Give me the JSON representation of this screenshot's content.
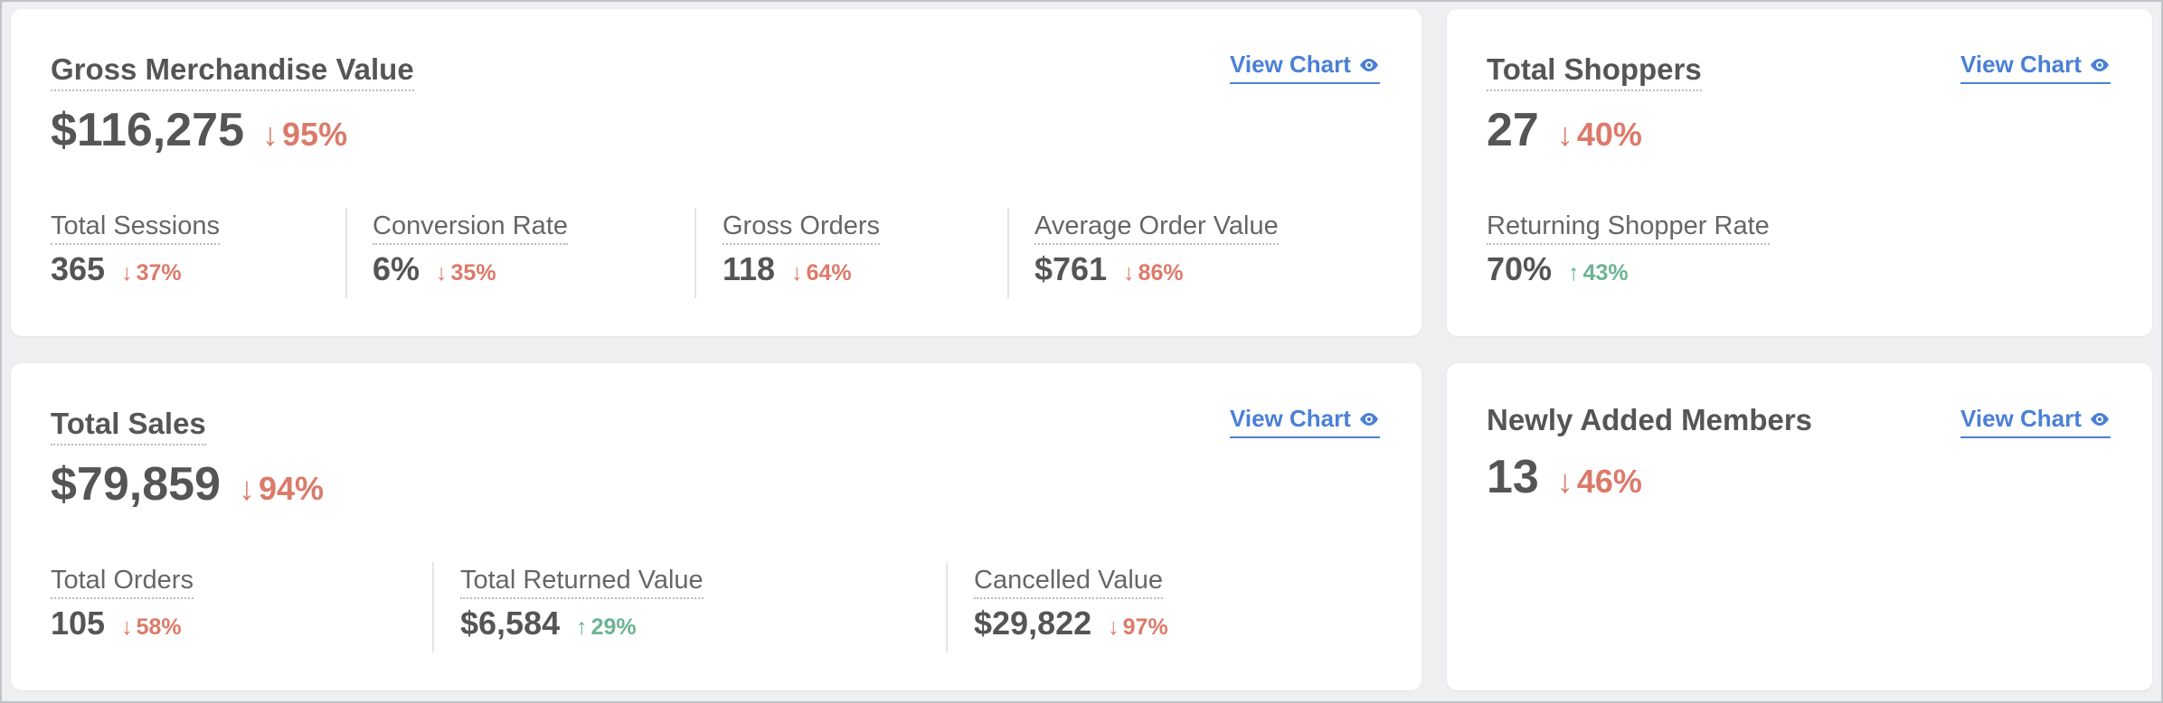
{
  "colors": {
    "down": "#dc7a6a",
    "up": "#6bb391",
    "link": "#4a80d6"
  },
  "view_chart_label": "View Chart",
  "gmv": {
    "title": "Gross Merchandise Value",
    "value": "$116,275",
    "delta": "95%",
    "delta_direction": "down",
    "metrics": [
      {
        "label": "Total Sessions",
        "value": "365",
        "delta": "37%",
        "direction": "down"
      },
      {
        "label": "Conversion Rate",
        "value": "6%",
        "delta": "35%",
        "direction": "down"
      },
      {
        "label": "Gross Orders",
        "value": "118",
        "delta": "64%",
        "direction": "down"
      },
      {
        "label": "Average Order Value",
        "value": "$761",
        "delta": "86%",
        "direction": "down"
      }
    ]
  },
  "shoppers": {
    "title": "Total Shoppers",
    "value": "27",
    "delta": "40%",
    "delta_direction": "down",
    "metrics": [
      {
        "label": "Returning Shopper Rate",
        "value": "70%",
        "delta": "43%",
        "direction": "up"
      }
    ]
  },
  "sales": {
    "title": "Total Sales",
    "value": "$79,859",
    "delta": "94%",
    "delta_direction": "down",
    "metrics": [
      {
        "label": "Total Orders",
        "value": "105",
        "delta": "58%",
        "direction": "down"
      },
      {
        "label": "Total Returned Value",
        "value": "$6,584",
        "delta": "29%",
        "direction": "up"
      },
      {
        "label": "Cancelled Value",
        "value": "$29,822",
        "delta": "97%",
        "direction": "down"
      }
    ]
  },
  "members": {
    "title": "Newly Added Members",
    "value": "13",
    "delta": "46%",
    "delta_direction": "down"
  }
}
